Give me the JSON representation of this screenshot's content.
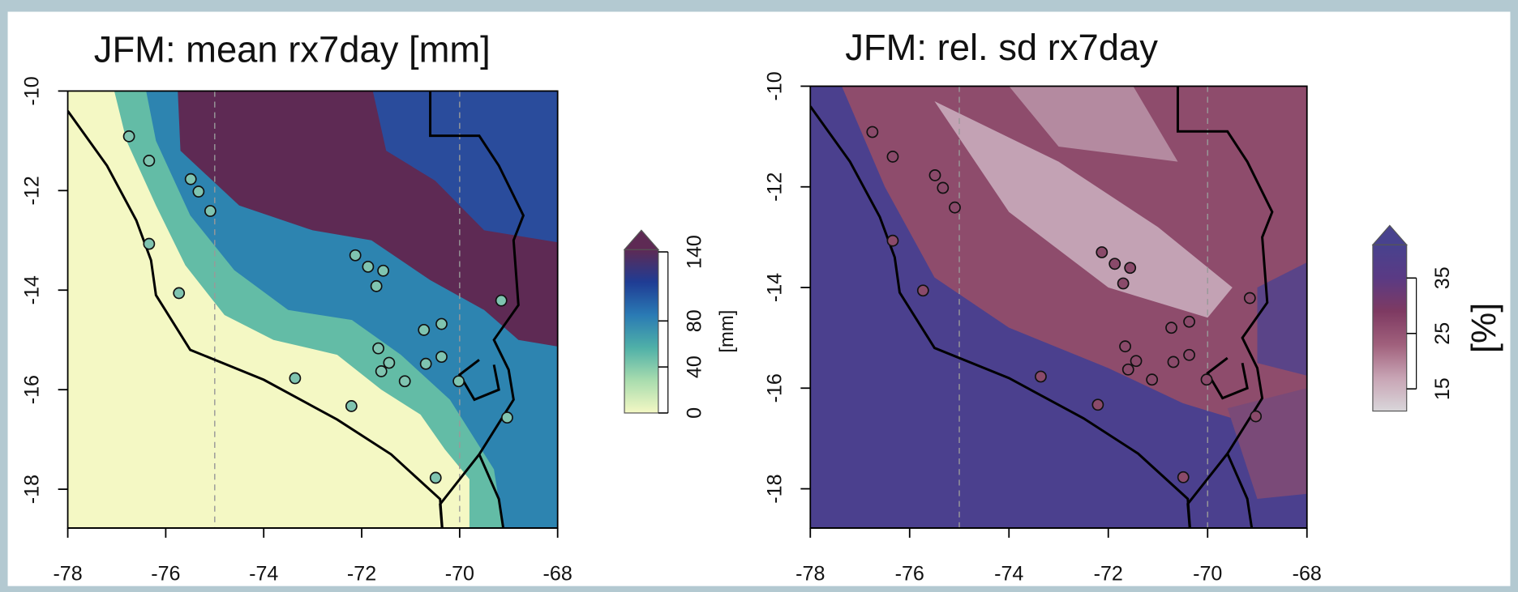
{
  "maps": [
    {
      "title": "JFM: mean rx7day [mm]",
      "xlim": [
        -78,
        -68
      ],
      "ylim": [
        -18.78,
        -10
      ],
      "xticks": [
        -78,
        -76,
        -74,
        -72,
        -70,
        -68
      ],
      "yticks": [
        -18,
        -16,
        -14,
        -12,
        -10
      ],
      "colorbar": {
        "lim": [
          0,
          142
        ],
        "ticks": [
          0,
          40,
          80,
          140
        ],
        "label": "[mm]",
        "colors": [
          "#f4f8c4",
          "#a8dcae",
          "#4fb0a8",
          "#2a7ab4",
          "#1f3c94",
          "#5e2a54"
        ]
      },
      "station_color": "#7fc4b0"
    },
    {
      "title": "JFM: rel. sd rx7day",
      "xlim": [
        -78,
        -68
      ],
      "ylim": [
        -18.78,
        -10
      ],
      "xticks": [
        -78,
        -76,
        -74,
        -72,
        -70,
        -68
      ],
      "yticks": [
        -18,
        -16,
        -14,
        -12,
        -10
      ],
      "colorbar": {
        "lim": [
          11,
          41
        ],
        "ticks": [
          15,
          25,
          35
        ],
        "label": "[%]",
        "colors": [
          "#d9d6da",
          "#c8a4b4",
          "#a0607c",
          "#7e3a62",
          "#5a3a84",
          "#48428e"
        ]
      },
      "station_color": "#8a4a6a"
    }
  ],
  "stations": {
    "lon": [
      -76.75,
      -76.34,
      -75.49,
      -75.33,
      -75.09,
      -76.34,
      -75.73,
      -72.13,
      -71.87,
      -71.56,
      -71.7,
      -69.15,
      -70.37,
      -70.73,
      -71.66,
      -71.44,
      -71.6,
      -71.12,
      -70.69,
      -70.37,
      -70.02,
      -73.36,
      -72.21,
      -70.49,
      -69.03
    ],
    "lat": [
      -10.91,
      -11.4,
      -11.77,
      -12.02,
      -12.41,
      -13.07,
      -14.06,
      -13.3,
      -13.53,
      -13.61,
      -13.92,
      -14.21,
      -14.68,
      -14.8,
      -15.17,
      -15.46,
      -15.63,
      -15.83,
      -15.48,
      -15.34,
      -15.83,
      -15.77,
      -16.33,
      -17.77,
      -16.56
    ]
  }
}
